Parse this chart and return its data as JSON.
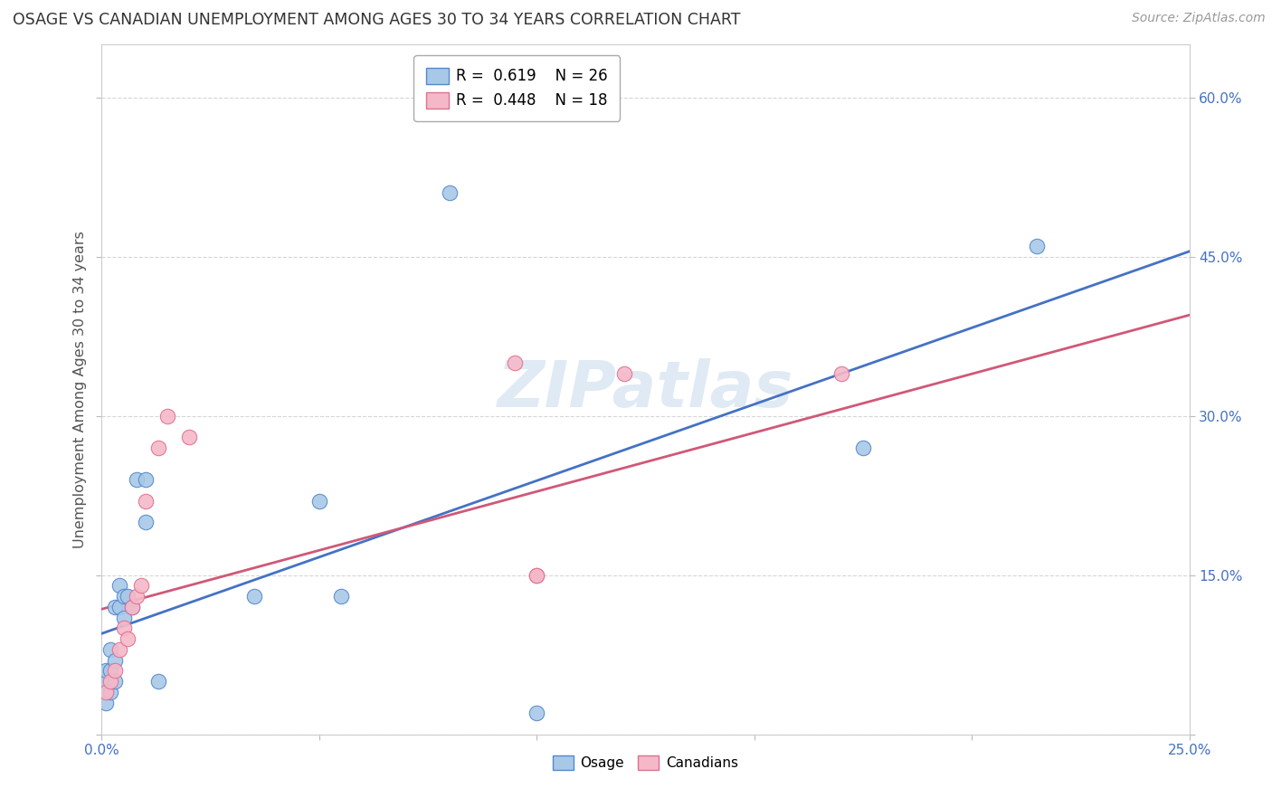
{
  "title": "OSAGE VS CANADIAN UNEMPLOYMENT AMONG AGES 30 TO 34 YEARS CORRELATION CHART",
  "source": "Source: ZipAtlas.com",
  "ylabel": "Unemployment Among Ages 30 to 34 years",
  "xlim": [
    0.0,
    0.25
  ],
  "ylim": [
    0.0,
    0.65
  ],
  "xticks": [
    0.0,
    0.05,
    0.1,
    0.15,
    0.2,
    0.25
  ],
  "yticks": [
    0.0,
    0.15,
    0.3,
    0.45,
    0.6
  ],
  "xtick_labels": [
    "0.0%",
    "",
    "",
    "",
    "",
    "25.0%"
  ],
  "ytick_labels_right": [
    "",
    "15.0%",
    "30.0%",
    "45.0%",
    "60.0%"
  ],
  "osage_color": "#a8c8e8",
  "canadian_color": "#f5b8c8",
  "osage_edge_color": "#5588cc",
  "canadian_edge_color": "#e07090",
  "osage_line_color": "#4472c4",
  "canadian_line_color": "#d05878",
  "osage_R": 0.619,
  "osage_N": 26,
  "canadian_R": 0.448,
  "canadian_N": 18,
  "watermark": "ZIPatlas",
  "osage_x": [
    0.001,
    0.001,
    0.001,
    0.002,
    0.002,
    0.002,
    0.003,
    0.003,
    0.003,
    0.004,
    0.004,
    0.005,
    0.005,
    0.006,
    0.007,
    0.008,
    0.01,
    0.01,
    0.013,
    0.035,
    0.05,
    0.055,
    0.08,
    0.1,
    0.175,
    0.215
  ],
  "osage_y": [
    0.03,
    0.05,
    0.06,
    0.04,
    0.06,
    0.08,
    0.05,
    0.07,
    0.12,
    0.12,
    0.14,
    0.11,
    0.13,
    0.13,
    0.12,
    0.24,
    0.24,
    0.2,
    0.05,
    0.13,
    0.22,
    0.13,
    0.51,
    0.02,
    0.27,
    0.46
  ],
  "canadian_x": [
    0.001,
    0.002,
    0.003,
    0.004,
    0.005,
    0.006,
    0.007,
    0.008,
    0.009,
    0.01,
    0.013,
    0.015,
    0.02,
    0.095,
    0.1,
    0.1,
    0.12,
    0.17
  ],
  "canadian_y": [
    0.04,
    0.05,
    0.06,
    0.08,
    0.1,
    0.09,
    0.12,
    0.13,
    0.14,
    0.22,
    0.27,
    0.3,
    0.28,
    0.35,
    0.15,
    0.15,
    0.34,
    0.34
  ],
  "background_color": "#ffffff",
  "grid_color": "#cccccc",
  "osage_trendline": [
    0.095,
    0.455
  ],
  "canadian_trendline": [
    0.118,
    0.395
  ]
}
